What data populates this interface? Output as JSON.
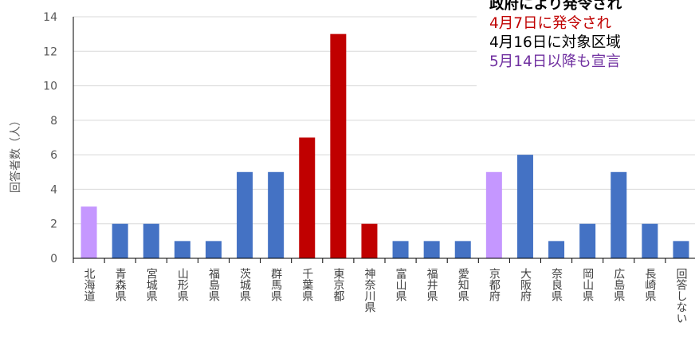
{
  "chart_data": {
    "type": "bar",
    "ylabel": "回答者数（人）",
    "ylim": [
      0,
      14
    ],
    "yticks": [
      0,
      2,
      4,
      6,
      8,
      10,
      12,
      14
    ],
    "grid": true,
    "categories": [
      "北海道",
      "青森県",
      "宮城県",
      "山形県",
      "福島県",
      "茨城県",
      "群馬県",
      "千葉県",
      "東京都",
      "神奈川県",
      "富山県",
      "福井県",
      "愛知県",
      "京都府",
      "大阪府",
      "奈良県",
      "岡山県",
      "広島県",
      "長崎県",
      "回答しない"
    ],
    "values": [
      3,
      2,
      2,
      1,
      1,
      5,
      5,
      7,
      13,
      2,
      1,
      1,
      1,
      5,
      6,
      1,
      2,
      5,
      2,
      1
    ],
    "bar_colors": [
      "#c597ff",
      "#4472c4",
      "#4472c4",
      "#4472c4",
      "#4472c4",
      "#4472c4",
      "#4472c4",
      "#c00000",
      "#c00000",
      "#c00000",
      "#4472c4",
      "#4472c4",
      "#4472c4",
      "#c597ff",
      "#4472c4",
      "#4472c4",
      "#4472c4",
      "#4472c4",
      "#4472c4",
      "#4472c4"
    ]
  },
  "legend": {
    "title": "政府により発令され",
    "items": [
      {
        "text": "4月7日に発令され",
        "color": "#c00000"
      },
      {
        "text": "4月16日に対象区域",
        "color": "#000000"
      },
      {
        "text": "5月14日以降も宣言",
        "color": "#7030a0"
      }
    ]
  }
}
